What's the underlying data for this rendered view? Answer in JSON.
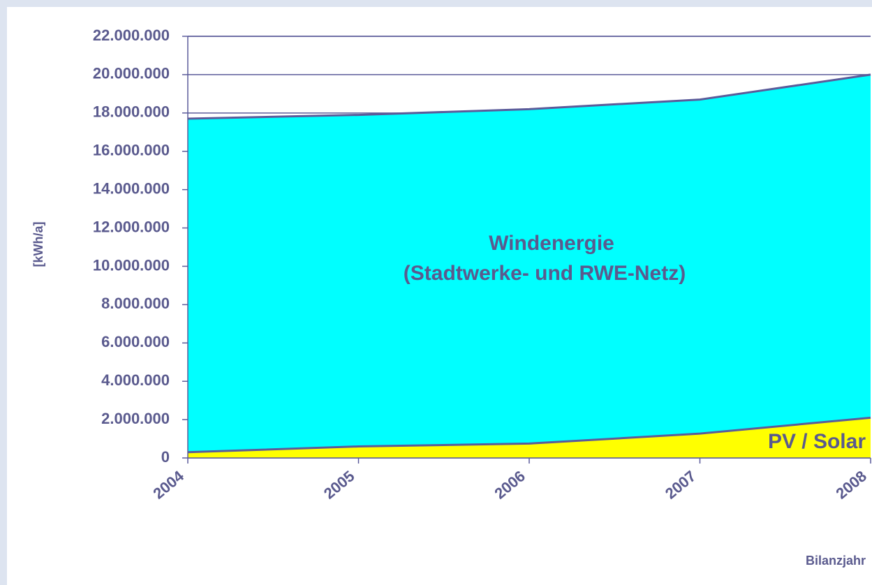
{
  "chart_data": {
    "type": "stacked_area",
    "categories": [
      "2004",
      "2005",
      "2006",
      "2007",
      "2008"
    ],
    "series": [
      {
        "name": "PV / Solar",
        "color": "#ffff00",
        "values": [
          300000,
          600000,
          750000,
          1270000,
          2100000
        ]
      },
      {
        "name": "Windenergie",
        "color": "#00ffff",
        "values": [
          17400000,
          17300000,
          17450000,
          17430000,
          17900000
        ]
      }
    ],
    "annotations": [
      "(Stadtwerke- und RWE-Netz)"
    ],
    "y_label": "[kWh/a]",
    "x_label": "Bilanzjahr",
    "ylim": [
      0,
      22000000
    ],
    "yticks": [
      {
        "value": 0,
        "label": "0"
      },
      {
        "value": 2000000,
        "label": "2.000.000"
      },
      {
        "value": 4000000,
        "label": "4.000.000"
      },
      {
        "value": 6000000,
        "label": "6.000.000"
      },
      {
        "value": 8000000,
        "label": "8.000.000"
      },
      {
        "value": 10000000,
        "label": "10.000.000"
      },
      {
        "value": 12000000,
        "label": "12.000.000"
      },
      {
        "value": 14000000,
        "label": "14.000.000"
      },
      {
        "value": 16000000,
        "label": "16.000.000"
      },
      {
        "value": 18000000,
        "label": "18.000.000"
      },
      {
        "value": 20000000,
        "label": "20.000.000"
      },
      {
        "value": 22000000,
        "label": "22.000.000"
      }
    ],
    "grid": true,
    "line_color": "#5b5b9a"
  }
}
